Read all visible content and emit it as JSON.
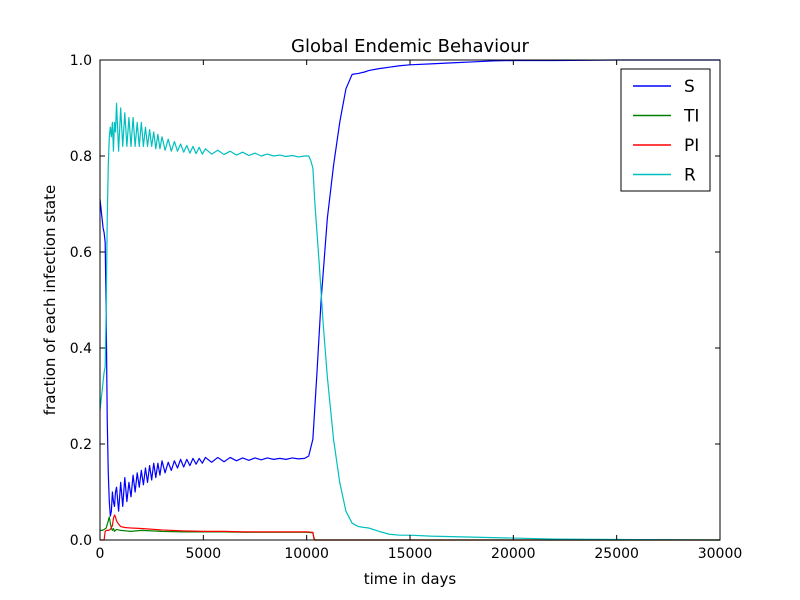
{
  "chart_data": {
    "type": "line",
    "title": "Global Endemic Behaviour",
    "xlabel": "time in days",
    "ylabel": "fraction of each infection state",
    "xlim": [
      0,
      30000
    ],
    "ylim": [
      0,
      1.0
    ],
    "xticks": [
      0,
      5000,
      10000,
      15000,
      20000,
      25000,
      30000
    ],
    "xtick_labels": [
      "0",
      "5000",
      "10000",
      "15000",
      "20000",
      "25000",
      "30000"
    ],
    "yticks": [
      0,
      0.2,
      0.4,
      0.6,
      0.8,
      1.0
    ],
    "ytick_labels": [
      "0.0",
      "0.2",
      "0.4",
      "0.6",
      "0.8",
      "1.0"
    ],
    "grid": false,
    "legend_position": "top-right",
    "series": [
      {
        "name": "S",
        "color": "#0000ff",
        "x": [
          0,
          50,
          100,
          150,
          200,
          250,
          300,
          350,
          400,
          450,
          500,
          550,
          600,
          650,
          700,
          750,
          800,
          900,
          1000,
          1100,
          1200,
          1300,
          1400,
          1500,
          1600,
          1700,
          1800,
          1900,
          2000,
          2100,
          2200,
          2300,
          2400,
          2500,
          2600,
          2700,
          2800,
          2900,
          3000,
          3150,
          3300,
          3450,
          3600,
          3750,
          3900,
          4050,
          4200,
          4350,
          4500,
          4650,
          4800,
          4950,
          5100,
          5400,
          5700,
          6000,
          6300,
          6600,
          6900,
          7200,
          7500,
          7800,
          8100,
          8400,
          8700,
          9000,
          9300,
          9600,
          9900,
          10100,
          10300,
          10500,
          10700,
          11000,
          11300,
          11600,
          11900,
          12200,
          12500,
          12800,
          13000,
          13500,
          14000,
          14500,
          15000,
          16000,
          17000,
          18000,
          19000,
          20000,
          21000,
          22000,
          25000,
          30000
        ],
        "y": [
          0.71,
          0.69,
          0.67,
          0.65,
          0.64,
          0.62,
          0.47,
          0.25,
          0.14,
          0.08,
          0.05,
          0.06,
          0.1,
          0.08,
          0.07,
          0.1,
          0.11,
          0.06,
          0.12,
          0.07,
          0.13,
          0.08,
          0.12,
          0.09,
          0.135,
          0.1,
          0.14,
          0.11,
          0.145,
          0.115,
          0.15,
          0.12,
          0.155,
          0.125,
          0.16,
          0.13,
          0.16,
          0.135,
          0.165,
          0.14,
          0.162,
          0.145,
          0.165,
          0.15,
          0.168,
          0.152,
          0.168,
          0.155,
          0.17,
          0.158,
          0.17,
          0.16,
          0.172,
          0.162,
          0.172,
          0.163,
          0.172,
          0.165,
          0.171,
          0.166,
          0.171,
          0.167,
          0.171,
          0.168,
          0.17,
          0.168,
          0.171,
          0.169,
          0.17,
          0.175,
          0.21,
          0.35,
          0.5,
          0.67,
          0.78,
          0.87,
          0.94,
          0.97,
          0.972,
          0.975,
          0.978,
          0.982,
          0.985,
          0.988,
          0.99,
          0.992,
          0.994,
          0.996,
          0.998,
          0.999,
          0.999,
          0.999,
          1.0,
          1.0
        ]
      },
      {
        "name": "TI",
        "color": "#008000",
        "x": [
          0,
          100,
          200,
          300,
          400,
          450,
          500,
          550,
          600,
          650,
          700,
          800,
          1000,
          1500,
          2000,
          3000,
          4000,
          5000,
          6000,
          7000,
          8000,
          9000,
          10000,
          10300,
          10350,
          10400,
          11000,
          15000,
          20000,
          30000
        ],
        "y": [
          0.02,
          0.02,
          0.022,
          0.025,
          0.04,
          0.048,
          0.035,
          0.025,
          0.02,
          0.024,
          0.018,
          0.022,
          0.02,
          0.018,
          0.02,
          0.018,
          0.017,
          0.017,
          0.017,
          0.016,
          0.016,
          0.016,
          0.016,
          0.015,
          0.005,
          0.0,
          0.0,
          0.0,
          0.0,
          0.0
        ]
      },
      {
        "name": "PI",
        "color": "#ff0000",
        "x": [
          0,
          200,
          250,
          300,
          400,
          500,
          600,
          650,
          700,
          750,
          800,
          900,
          1000,
          1200,
          1500,
          2000,
          3000,
          4000,
          5000,
          6000,
          7000,
          8000,
          9000,
          10000,
          10300,
          10350,
          10400,
          11000,
          15000,
          20000,
          30000
        ],
        "y": [
          0.0,
          0.0,
          0.018,
          0.02,
          0.02,
          0.022,
          0.03,
          0.045,
          0.052,
          0.048,
          0.04,
          0.033,
          0.028,
          0.026,
          0.025,
          0.024,
          0.021,
          0.019,
          0.018,
          0.018,
          0.017,
          0.017,
          0.017,
          0.017,
          0.016,
          0.003,
          0.0,
          0.0,
          0.0,
          0.0,
          0.0
        ]
      },
      {
        "name": "R",
        "color": "#00bfbf",
        "x": [
          0,
          50,
          100,
          150,
          200,
          250,
          300,
          350,
          400,
          450,
          500,
          550,
          600,
          650,
          700,
          750,
          800,
          900,
          1000,
          1100,
          1200,
          1300,
          1400,
          1500,
          1600,
          1700,
          1800,
          1900,
          2000,
          2100,
          2200,
          2300,
          2400,
          2500,
          2600,
          2700,
          2800,
          2900,
          3000,
          3150,
          3300,
          3450,
          3600,
          3750,
          3900,
          4050,
          4200,
          4350,
          4500,
          4650,
          4800,
          4950,
          5100,
          5400,
          5700,
          6000,
          6300,
          6600,
          6900,
          7200,
          7500,
          7800,
          8100,
          8400,
          8700,
          9000,
          9300,
          9600,
          9900,
          10100,
          10200,
          10300,
          10400,
          10600,
          10800,
          11000,
          11300,
          11600,
          11900,
          12200,
          12500,
          12800,
          13000,
          13500,
          14000,
          14500,
          15000,
          16000,
          17000,
          18000,
          19000,
          20000,
          21000,
          22000,
          25000,
          30000
        ],
        "y": [
          0.27,
          0.29,
          0.31,
          0.33,
          0.35,
          0.36,
          0.48,
          0.67,
          0.78,
          0.84,
          0.86,
          0.84,
          0.87,
          0.81,
          0.87,
          0.85,
          0.91,
          0.81,
          0.9,
          0.82,
          0.89,
          0.82,
          0.88,
          0.82,
          0.88,
          0.82,
          0.87,
          0.82,
          0.87,
          0.82,
          0.86,
          0.82,
          0.855,
          0.82,
          0.85,
          0.815,
          0.845,
          0.815,
          0.84,
          0.812,
          0.835,
          0.81,
          0.83,
          0.81,
          0.825,
          0.808,
          0.822,
          0.806,
          0.82,
          0.805,
          0.818,
          0.804,
          0.815,
          0.804,
          0.812,
          0.803,
          0.81,
          0.802,
          0.808,
          0.801,
          0.806,
          0.8,
          0.804,
          0.8,
          0.802,
          0.799,
          0.801,
          0.798,
          0.8,
          0.8,
          0.79,
          0.775,
          0.7,
          0.58,
          0.45,
          0.34,
          0.21,
          0.12,
          0.06,
          0.035,
          0.028,
          0.026,
          0.025,
          0.018,
          0.012,
          0.01,
          0.01,
          0.008,
          0.007,
          0.006,
          0.005,
          0.004,
          0.003,
          0.002,
          0.001,
          0.0
        ]
      }
    ]
  }
}
